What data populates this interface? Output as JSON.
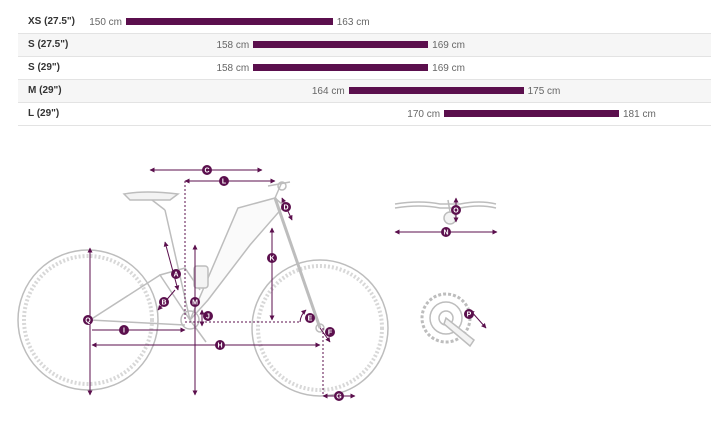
{
  "size_chart": {
    "range_min_cm": 150,
    "range_max_cm": 181,
    "rows": [
      {
        "size": "XS (27.5\")",
        "min": 150,
        "max": 163,
        "min_label": "150 cm",
        "max_label": "163 cm"
      },
      {
        "size": "S (27.5\")",
        "min": 158,
        "max": 169,
        "min_label": "158 cm",
        "max_label": "169 cm"
      },
      {
        "size": "S (29\")",
        "min": 158,
        "max": 169,
        "min_label": "158 cm",
        "max_label": "169 cm"
      },
      {
        "size": "M (29\")",
        "min": 164,
        "max": 175,
        "min_label": "164 cm",
        "max_label": "175 cm"
      },
      {
        "size": "L (29\")",
        "min": 170,
        "max": 181,
        "min_label": "170 cm",
        "max_label": "181 cm"
      }
    ]
  },
  "geometry": {
    "accent_color": "#5b0f4d",
    "line_color": "#bdbdbd",
    "markers": {
      "A": "A",
      "B": "B",
      "C": "C",
      "D": "D",
      "E": "E",
      "F": "F",
      "G": "G",
      "H": "H",
      "I": "I",
      "J": "J",
      "K": "K",
      "L": "L",
      "M": "M",
      "N": "N",
      "O": "O",
      "P": "P",
      "Q": "Q"
    }
  }
}
